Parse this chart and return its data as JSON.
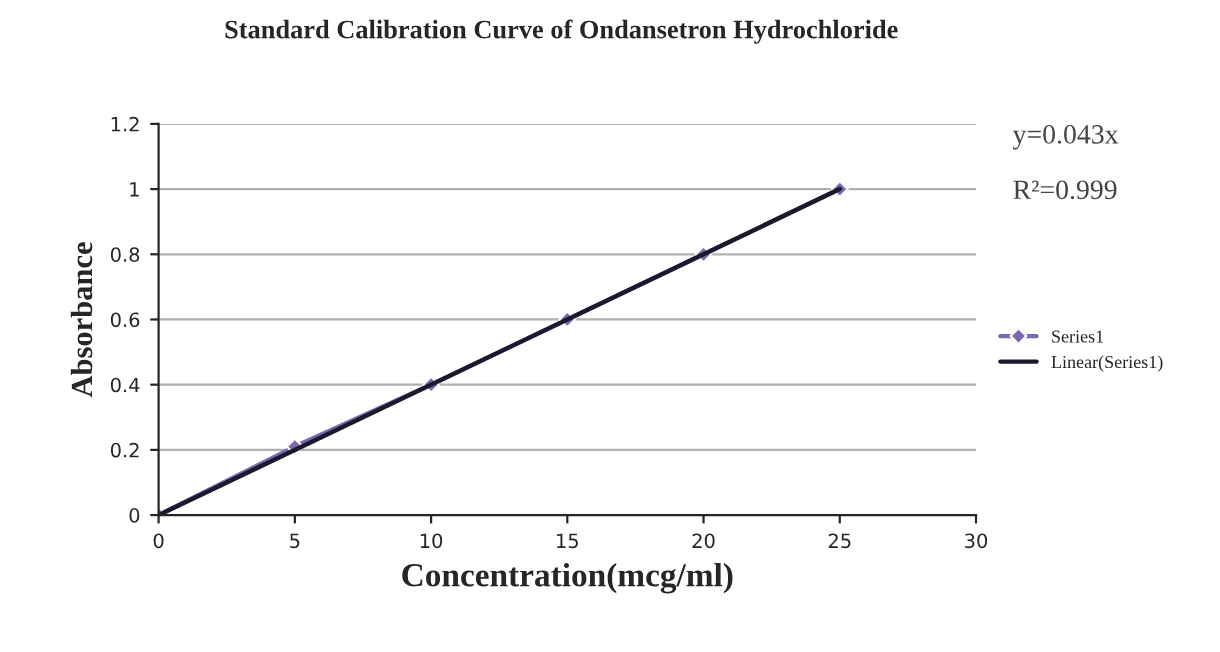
{
  "chart_data": {
    "type": "line",
    "title": "Standard Calibration Curve of Ondansetron Hydrochloride",
    "xlabel": "Concentration(mcg/ml)",
    "ylabel": "Absorbance",
    "x": [
      0,
      5,
      10,
      15,
      20,
      25
    ],
    "series": [
      {
        "name": "Series1",
        "color": "#7b68b0",
        "values": [
          0,
          0.21,
          0.4,
          0.6,
          0.8,
          1.0
        ],
        "marker": "diamond"
      },
      {
        "name": "Linear(Series1)",
        "color": "#1a1a2e",
        "x": [
          0,
          25
        ],
        "values": [
          0,
          1.0
        ],
        "marker": "none"
      }
    ],
    "annotations": [
      "y=0.043x",
      "R²=0.999"
    ],
    "xlim": [
      0,
      30
    ],
    "xticks": [
      0,
      5,
      10,
      15,
      20,
      25,
      30
    ],
    "ylim": [
      0,
      1.2
    ],
    "yticks": [
      0,
      0.2,
      0.4,
      0.6,
      0.8,
      1,
      1.2
    ],
    "grid": "y",
    "legend": "right"
  }
}
